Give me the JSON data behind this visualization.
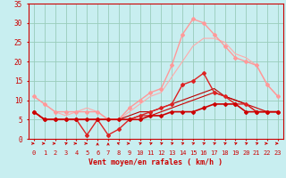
{
  "title": "",
  "xlabel": "Vent moyen/en rafales ( km/h )",
  "xlim": [
    -0.5,
    23.5
  ],
  "ylim": [
    0,
    35
  ],
  "yticks": [
    0,
    5,
    10,
    15,
    20,
    25,
    30,
    35
  ],
  "xticks": [
    0,
    1,
    2,
    3,
    4,
    5,
    6,
    7,
    8,
    9,
    10,
    11,
    12,
    13,
    14,
    15,
    16,
    17,
    18,
    19,
    20,
    21,
    22,
    23
  ],
  "bg_color": "#c8eef0",
  "grid_color": "#99ccbb",
  "line1_x": [
    0,
    1,
    2,
    3,
    4,
    5,
    6,
    7,
    8,
    9,
    10,
    11,
    12,
    13,
    14,
    15,
    16,
    17,
    18,
    19,
    20,
    21,
    22,
    23
  ],
  "line1_y": [
    7,
    5,
    5,
    5,
    5,
    5,
    5,
    5,
    5,
    5,
    5,
    6,
    6,
    7,
    7,
    7,
    8,
    9,
    9,
    9,
    7,
    7,
    7,
    7
  ],
  "line1_color": "#cc0000",
  "line1_lw": 1.2,
  "line2_x": [
    0,
    1,
    2,
    3,
    4,
    5,
    6,
    7,
    8,
    9,
    10,
    11,
    12,
    13,
    14,
    15,
    16,
    17,
    18,
    19,
    20,
    21,
    22,
    23
  ],
  "line2_y": [
    7,
    5,
    5,
    5,
    5,
    1,
    5,
    1,
    2.5,
    5,
    6,
    7,
    8,
    9,
    14,
    15,
    17,
    12,
    11,
    9,
    9,
    7,
    7,
    7
  ],
  "line2_color": "#dd2222",
  "line2_lw": 1.0,
  "line3_x": [
    0,
    1,
    2,
    3,
    4,
    5,
    6,
    7,
    8,
    9,
    10,
    11,
    12,
    13,
    14,
    15,
    16,
    17,
    18,
    19,
    20,
    21,
    22,
    23
  ],
  "line3_y": [
    11,
    9,
    7,
    7,
    7,
    7,
    7,
    5,
    5,
    8,
    10,
    12,
    13,
    19,
    27,
    31,
    30,
    27,
    24,
    21,
    20,
    19,
    14,
    11
  ],
  "line3_color": "#ff9999",
  "line3_lw": 1.0,
  "line4_x": [
    0,
    1,
    2,
    3,
    4,
    5,
    6,
    7,
    8,
    9,
    10,
    11,
    12,
    13,
    14,
    15,
    16,
    17,
    18,
    19,
    20,
    21,
    22,
    23
  ],
  "line4_y": [
    7,
    5,
    5,
    5,
    5,
    5,
    5,
    5,
    5,
    5,
    6,
    6,
    7,
    8,
    9,
    10,
    11,
    12,
    11,
    10,
    9,
    8,
    7,
    7
  ],
  "line4_color": "#cc0000",
  "line4_lw": 0.8,
  "line5_x": [
    0,
    1,
    2,
    3,
    4,
    5,
    6,
    7,
    8,
    9,
    10,
    11,
    12,
    13,
    14,
    15,
    16,
    17,
    18,
    19,
    20,
    21,
    22,
    23
  ],
  "line5_y": [
    11,
    9,
    7,
    6,
    7,
    8,
    7,
    5,
    5,
    7,
    9,
    11,
    12,
    16,
    20,
    24,
    26,
    26,
    25,
    22,
    21,
    19,
    14,
    11
  ],
  "line5_color": "#ffaaaa",
  "line5_lw": 0.8,
  "line6_x": [
    0,
    1,
    2,
    3,
    4,
    5,
    6,
    7,
    8,
    9,
    10,
    11,
    12,
    13,
    14,
    15,
    16,
    17,
    18,
    19,
    20,
    21,
    22,
    23
  ],
  "line6_y": [
    7,
    5,
    5,
    5,
    5,
    5,
    5,
    5,
    5,
    6,
    7,
    7,
    8,
    9,
    10,
    11,
    12,
    13,
    11,
    10,
    9,
    7,
    7,
    7
  ],
  "line6_color": "#bb0000",
  "line6_lw": 0.8,
  "arrow_color": "#cc0000",
  "arrow_directions": [
    0,
    0,
    0,
    45,
    0,
    0,
    90,
    90,
    135,
    0,
    45,
    45,
    45,
    45,
    45,
    45,
    45,
    45,
    45,
    45,
    45,
    45,
    0,
    0
  ],
  "marker_size": 2.0
}
